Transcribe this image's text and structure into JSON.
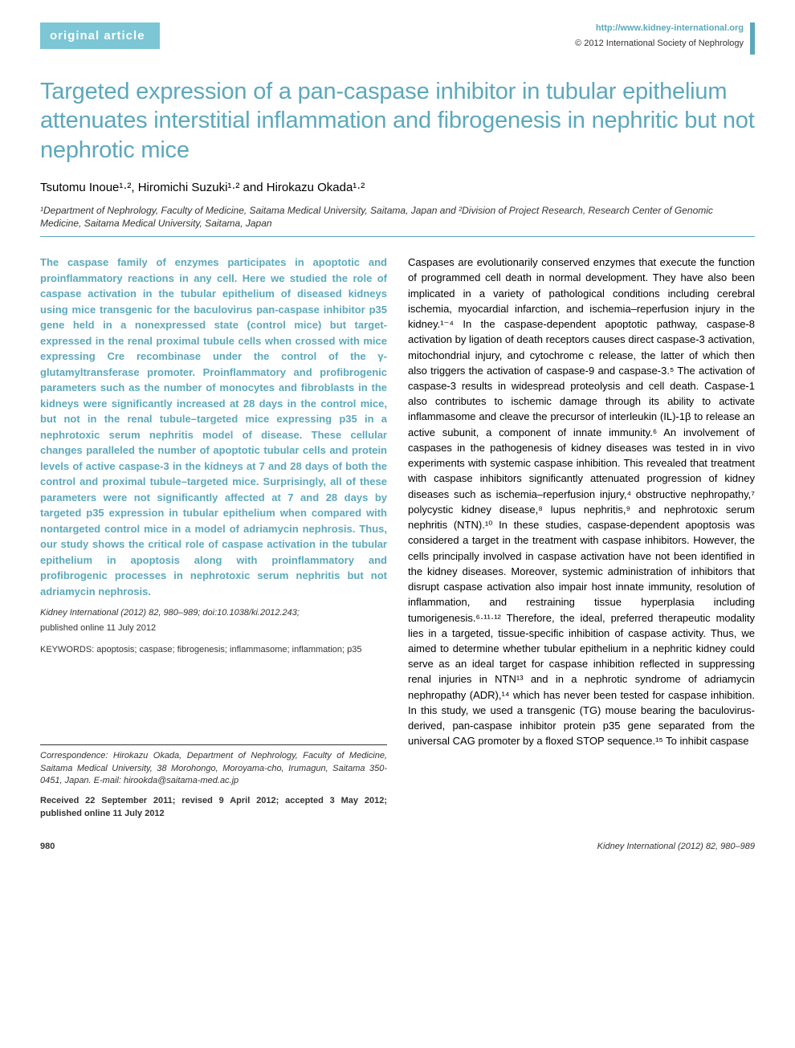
{
  "header": {
    "badge": "original article",
    "url": "http://www.kidney-international.org",
    "copyright": "© 2012 International Society of Nephrology"
  },
  "title": "Targeted expression of a pan-caspase inhibitor in tubular epithelium attenuates interstitial inflammation and fibrogenesis in nephritic but not nephrotic mice",
  "authors": "Tsutomu Inoue¹·², Hiromichi Suzuki¹·² and Hirokazu Okada¹·²",
  "affiliations": "¹Department of Nephrology, Faculty of Medicine, Saitama Medical University, Saitama, Japan and ²Division of Project Research, Research Center of Genomic Medicine, Saitama Medical University, Saitama, Japan",
  "abstract": "The caspase family of enzymes participates in apoptotic and proinflammatory reactions in any cell. Here we studied the role of caspase activation in the tubular epithelium of diseased kidneys using mice transgenic for the baculovirus pan-caspase inhibitor p35 gene held in a nonexpressed state (control mice) but target-expressed in the renal proximal tubule cells when crossed with mice expressing Cre recombinase under the control of the γ-glutamyltransferase promoter. Proinflammatory and profibrogenic parameters such as the number of monocytes and fibroblasts in the kidneys were significantly increased at 28 days in the control mice, but not in the renal tubule–targeted mice expressing p35 in a nephrotoxic serum nephritis model of disease. These cellular changes paralleled the number of apoptotic tubular cells and protein levels of active caspase-3 in the kidneys at 7 and 28 days of both the control and proximal tubule–targeted mice. Surprisingly, all of these parameters were not significantly affected at 7 and 28 days by targeted p35 expression in tubular epithelium when compared with nontargeted control mice in a model of adriamycin nephrosis. Thus, our study shows the critical role of caspase activation in the tubular epithelium in apoptosis along with proinflammatory and profibrogenic processes in nephrotoxic serum nephritis but not adriamycin nephrosis.",
  "citation": "Kidney International (2012) 82, 980–989; doi:10.1038/ki.2012.243;",
  "pub_date": "published online 11 July 2012",
  "keywords_label": "KEYWORDS: ",
  "keywords": "apoptosis; caspase; fibrogenesis; inflammasome; inflammation; p35",
  "body": "Caspases are evolutionarily conserved enzymes that execute the function of programmed cell death in normal development. They have also been implicated in a variety of pathological conditions including cerebral ischemia, myocardial infarction, and ischemia–reperfusion injury in the kidney.¹⁻⁴ In the caspase-dependent apoptotic pathway, caspase-8 activation by ligation of death receptors causes direct caspase-3 activation, mitochondrial injury, and cytochrome c release, the latter of which then also triggers the activation of caspase-9 and caspase-3.⁵ The activation of caspase-3 results in widespread proteolysis and cell death. Caspase-1 also contributes to ischemic damage through its ability to activate inflammasome and cleave the precursor of interleukin (IL)-1β to release an active subunit, a component of innate immunity.⁶ An involvement of caspases in the pathogenesis of kidney diseases was tested in in vivo experiments with systemic caspase inhibition. This revealed that treatment with caspase inhibitors significantly attenuated progression of kidney diseases such as ischemia–reperfusion injury,⁴ obstructive nephropathy,⁷ polycystic kidney disease,⁸ lupus nephritis,⁹ and nephrotoxic serum nephritis (NTN).¹⁰ In these studies, caspase-dependent apoptosis was considered a target in the treatment with caspase inhibitors. However, the cells principally involved in caspase activation have not been identified in the kidney diseases. Moreover, systemic administration of inhibitors that disrupt caspase activation also impair host innate immunity, resolution of inflammation, and restraining tissue hyperplasia including tumorigenesis.⁶·¹¹·¹² Therefore, the ideal, preferred therapeutic modality lies in a targeted, tissue-specific inhibition of caspase activity. Thus, we aimed to determine whether tubular epithelium in a nephritic kidney could serve as an ideal target for caspase inhibition reflected in suppressing renal injuries in NTN¹³ and in a nephrotic syndrome of adriamycin nephropathy (ADR),¹⁴ which has never been tested for caspase inhibition. In this study, we used a transgenic (TG) mouse bearing the baculovirus-derived, pan-caspase inhibitor protein p35 gene separated from the universal CAG promoter by a floxed STOP sequence.¹⁵ To inhibit caspase",
  "correspondence": "Correspondence: Hirokazu Okada, Department of Nephrology, Faculty of Medicine, Saitama Medical University, 38 Morohongo, Moroyama-cho, Irumagun, Saitama 350-0451, Japan. E-mail: hirookda@saitama-med.ac.jp",
  "received": "Received 22 September 2011; revised 9 April 2012; accepted 3 May 2012; published online 11 July 2012",
  "footer": {
    "page": "980",
    "journal": "Kidney International (2012) 82, 980–989"
  },
  "colors": {
    "accent": "#5BA8BC",
    "badge_bg": "#7CC6D6",
    "text": "#000000",
    "muted": "#333333",
    "background": "#ffffff"
  },
  "typography": {
    "title_fontsize": 29,
    "body_fontsize": 13,
    "abstract_fontsize": 13,
    "small_fontsize": 11,
    "authors_fontsize": 15
  }
}
